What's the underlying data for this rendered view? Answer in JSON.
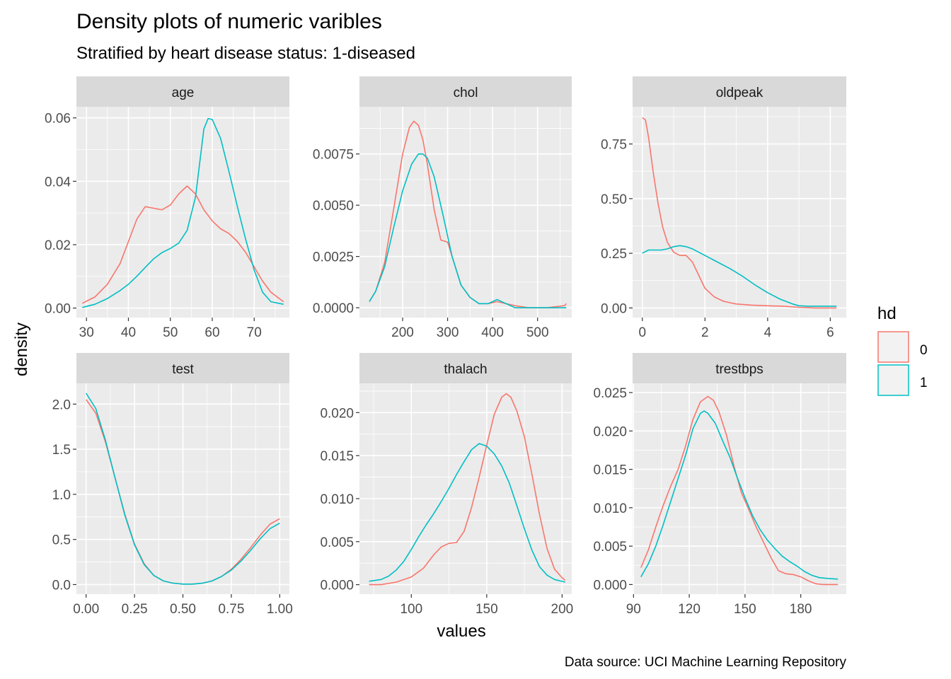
{
  "title": "Density plots of numeric varibles",
  "subtitle": "Stratified by heart disease status: 1-diseased",
  "caption": "Data source: UCI Machine Learning Repository",
  "x_title": "values",
  "y_title": "density",
  "legend": {
    "title": "hd",
    "entries": [
      "0",
      "1"
    ]
  },
  "colors": {
    "0": "#F8766D",
    "1": "#00BFC4",
    "panel_bg": "#EBEBEB",
    "strip_bg": "#D9D9D9",
    "grid": "#FFFFFF"
  },
  "chart_data": [
    {
      "type": "line",
      "panel": "age",
      "xlim": [
        27.6,
        78.4
      ],
      "ylim": [
        -0.003,
        0.0635
      ],
      "xticks": [
        30,
        40,
        50,
        60,
        70
      ],
      "xtick_labels": [
        "30",
        "40",
        "50",
        "60",
        "70"
      ],
      "yticks": [
        0,
        0.02,
        0.04,
        0.06
      ],
      "ytick_labels": [
        "0.00",
        "0.02",
        "0.04",
        "0.06"
      ],
      "series": [
        {
          "name": "0",
          "x": [
            29,
            32,
            35,
            38,
            40,
            42,
            44,
            46,
            48,
            50,
            52,
            54,
            56,
            58,
            60,
            62,
            64,
            66,
            68,
            70,
            72,
            74,
            77
          ],
          "y": [
            0.0015,
            0.0035,
            0.0075,
            0.014,
            0.021,
            0.028,
            0.032,
            0.0315,
            0.031,
            0.0325,
            0.036,
            0.0385,
            0.036,
            0.031,
            0.0275,
            0.025,
            0.0235,
            0.021,
            0.0175,
            0.013,
            0.0085,
            0.005,
            0.002
          ]
        },
        {
          "name": "1",
          "x": [
            29,
            32,
            35,
            38,
            40,
            42,
            44,
            46,
            48,
            50,
            52,
            54,
            56,
            58,
            59,
            60,
            62,
            64,
            66,
            68,
            70,
            72,
            74,
            77
          ],
          "y": [
            0.0002,
            0.0012,
            0.003,
            0.0055,
            0.0075,
            0.01,
            0.0128,
            0.0155,
            0.0175,
            0.0188,
            0.0205,
            0.0245,
            0.035,
            0.0565,
            0.0598,
            0.0595,
            0.0535,
            0.043,
            0.032,
            0.0215,
            0.012,
            0.005,
            0.002,
            0.0012
          ]
        }
      ]
    },
    {
      "type": "line",
      "panel": "chol",
      "xlim": [
        104,
        576
      ],
      "ylim": [
        -0.00048,
        0.0098
      ],
      "xticks": [
        200,
        300,
        400,
        500
      ],
      "xtick_labels": [
        "200",
        "300",
        "400",
        "500"
      ],
      "yticks": [
        0,
        0.0025,
        0.005,
        0.0075
      ],
      "ytick_labels": [
        "0.0000",
        "0.0025",
        "0.0050",
        "0.0075"
      ],
      "series": [
        {
          "name": "0",
          "x": [
            126,
            140,
            160,
            180,
            200,
            215,
            225,
            235,
            245,
            255,
            270,
            285,
            300,
            310,
            330,
            350,
            370,
            390,
            410,
            430,
            450,
            480,
            520,
            560,
            564
          ],
          "y": [
            0.0003,
            0.0008,
            0.0022,
            0.0048,
            0.0075,
            0.0088,
            0.0091,
            0.0089,
            0.0082,
            0.007,
            0.0048,
            0.0033,
            0.0032,
            0.0025,
            0.0011,
            0.0005,
            0.0002,
            0.0002,
            0.0003,
            0.0002,
            0.0001,
            0.0,
            0.0,
            0.0001,
            0.0002
          ]
        },
        {
          "name": "1",
          "x": [
            126,
            140,
            160,
            180,
            200,
            220,
            235,
            245,
            255,
            270,
            290,
            310,
            330,
            350,
            370,
            390,
            410,
            430,
            450,
            480,
            520,
            564
          ],
          "y": [
            0.0003,
            0.0008,
            0.002,
            0.0039,
            0.0057,
            0.007,
            0.0075,
            0.0075,
            0.0073,
            0.0064,
            0.0045,
            0.0025,
            0.0011,
            0.0005,
            0.0002,
            0.0002,
            0.0004,
            0.0002,
            0.0,
            0.0,
            0.0,
            0.0
          ]
        }
      ]
    },
    {
      "type": "line",
      "panel": "oldpeak",
      "xlim": [
        -0.31,
        6.51
      ],
      "ylim": [
        -0.044,
        0.92
      ],
      "xticks": [
        0,
        2,
        4,
        6
      ],
      "xtick_labels": [
        "0",
        "2",
        "4",
        "6"
      ],
      "yticks": [
        0,
        0.25,
        0.5,
        0.75
      ],
      "ytick_labels": [
        "0.00",
        "0.25",
        "0.50",
        "0.75"
      ],
      "series": [
        {
          "name": "0",
          "x": [
            0,
            0.1,
            0.2,
            0.35,
            0.5,
            0.65,
            0.8,
            1.0,
            1.2,
            1.4,
            1.6,
            1.8,
            2.0,
            2.3,
            2.6,
            3.0,
            3.5,
            4.0,
            4.5,
            5.0,
            5.5,
            6.2
          ],
          "y": [
            0.87,
            0.86,
            0.78,
            0.62,
            0.48,
            0.37,
            0.3,
            0.255,
            0.24,
            0.24,
            0.21,
            0.15,
            0.09,
            0.05,
            0.03,
            0.018,
            0.013,
            0.01,
            0.008,
            0.003,
            0.0,
            0.0
          ]
        },
        {
          "name": "1",
          "x": [
            0,
            0.2,
            0.4,
            0.6,
            0.8,
            1.0,
            1.2,
            1.4,
            1.6,
            2.0,
            2.4,
            2.8,
            3.2,
            3.6,
            4.0,
            4.4,
            4.8,
            5.0,
            5.3,
            5.6,
            6.2
          ],
          "y": [
            0.25,
            0.265,
            0.265,
            0.265,
            0.27,
            0.28,
            0.285,
            0.28,
            0.27,
            0.24,
            0.21,
            0.18,
            0.145,
            0.105,
            0.07,
            0.04,
            0.018,
            0.01,
            0.008,
            0.008,
            0.008
          ]
        }
      ]
    },
    {
      "type": "line",
      "panel": "test",
      "xlim": [
        -0.05,
        1.05
      ],
      "ylim": [
        -0.106,
        2.23
      ],
      "xticks": [
        0,
        0.25,
        0.5,
        0.75,
        1.0
      ],
      "xtick_labels": [
        "0.00",
        "0.25",
        "0.50",
        "0.75",
        "1.00"
      ],
      "yticks": [
        0,
        0.5,
        1.0,
        1.5,
        2.0
      ],
      "ytick_labels": [
        "0.0",
        "0.5",
        "1.0",
        "1.5",
        "2.0"
      ],
      "series": [
        {
          "name": "0",
          "x": [
            0,
            0.05,
            0.1,
            0.15,
            0.2,
            0.25,
            0.3,
            0.35,
            0.4,
            0.45,
            0.5,
            0.55,
            0.6,
            0.65,
            0.7,
            0.75,
            0.8,
            0.85,
            0.9,
            0.95,
            1.0
          ],
          "y": [
            2.05,
            1.9,
            1.58,
            1.18,
            0.78,
            0.45,
            0.23,
            0.1,
            0.04,
            0.015,
            0.005,
            0.005,
            0.015,
            0.04,
            0.09,
            0.17,
            0.28,
            0.41,
            0.55,
            0.67,
            0.73
          ]
        },
        {
          "name": "1",
          "x": [
            0,
            0.05,
            0.1,
            0.15,
            0.2,
            0.25,
            0.3,
            0.35,
            0.4,
            0.45,
            0.5,
            0.55,
            0.6,
            0.65,
            0.7,
            0.75,
            0.8,
            0.85,
            0.9,
            0.95,
            1.0
          ],
          "y": [
            2.12,
            1.95,
            1.6,
            1.18,
            0.77,
            0.44,
            0.22,
            0.1,
            0.04,
            0.015,
            0.005,
            0.005,
            0.015,
            0.04,
            0.09,
            0.16,
            0.26,
            0.38,
            0.51,
            0.62,
            0.68
          ]
        }
      ]
    },
    {
      "type": "line",
      "panel": "thalach",
      "xlim": [
        65.6,
        206.4
      ],
      "ylim": [
        -0.0011,
        0.0234
      ],
      "xticks": [
        100,
        150,
        200
      ],
      "xtick_labels": [
        "100",
        "150",
        "200"
      ],
      "yticks": [
        0,
        0.005,
        0.01,
        0.015,
        0.02
      ],
      "ytick_labels": [
        "0.000",
        "0.005",
        "0.010",
        "0.015",
        "0.020"
      ],
      "series": [
        {
          "name": "0",
          "x": [
            72,
            80,
            90,
            100,
            108,
            115,
            120,
            125,
            130,
            135,
            140,
            145,
            150,
            155,
            160,
            163,
            166,
            170,
            175,
            180,
            185,
            190,
            195,
            200,
            202
          ],
          "y": [
            0.0,
            0.0,
            0.0003,
            0.0009,
            0.0019,
            0.0035,
            0.0044,
            0.0048,
            0.0049,
            0.0062,
            0.009,
            0.0125,
            0.0162,
            0.0198,
            0.0218,
            0.0222,
            0.0218,
            0.0202,
            0.0172,
            0.0128,
            0.0082,
            0.0042,
            0.0018,
            0.0008,
            0.0005
          ]
        },
        {
          "name": "1",
          "x": [
            72,
            80,
            85,
            90,
            95,
            100,
            105,
            110,
            115,
            120,
            125,
            130,
            135,
            140,
            145,
            150,
            155,
            160,
            165,
            170,
            175,
            180,
            185,
            190,
            195,
            202
          ],
          "y": [
            0.0004,
            0.0006,
            0.001,
            0.0017,
            0.0027,
            0.0041,
            0.0056,
            0.007,
            0.0083,
            0.0097,
            0.0112,
            0.0128,
            0.0143,
            0.0157,
            0.0164,
            0.0161,
            0.0152,
            0.0138,
            0.0118,
            0.0092,
            0.0065,
            0.004,
            0.0021,
            0.0011,
            0.0006,
            0.0003
          ]
        }
      ]
    },
    {
      "type": "line",
      "panel": "trestbps",
      "xlim": [
        89.5,
        204.5
      ],
      "ylim": [
        -0.00125,
        0.0262
      ],
      "xticks": [
        90,
        120,
        150,
        180
      ],
      "xtick_labels": [
        "90",
        "120",
        "150",
        "180"
      ],
      "yticks": [
        0,
        0.005,
        0.01,
        0.015,
        0.02,
        0.025
      ],
      "ytick_labels": [
        "0.000",
        "0.005",
        "0.010",
        "0.015",
        "0.020",
        "0.025"
      ],
      "series": [
        {
          "name": "0",
          "x": [
            94,
            98,
            102,
            106,
            110,
            114,
            118,
            122,
            126,
            130,
            133,
            136,
            140,
            144,
            148,
            152,
            156,
            160,
            164,
            168,
            172,
            176,
            180,
            184,
            188,
            192,
            196,
            200
          ],
          "y": [
            0.0022,
            0.0045,
            0.0075,
            0.0103,
            0.0128,
            0.015,
            0.018,
            0.0215,
            0.0238,
            0.0245,
            0.024,
            0.0225,
            0.0195,
            0.0155,
            0.012,
            0.0098,
            0.0075,
            0.0055,
            0.0035,
            0.0018,
            0.0014,
            0.0013,
            0.001,
            0.0005,
            0.0001,
            0.0,
            0.0,
            0.0
          ]
        },
        {
          "name": "1",
          "x": [
            94,
            98,
            102,
            106,
            110,
            114,
            118,
            122,
            126,
            128,
            130,
            134,
            138,
            142,
            146,
            150,
            154,
            158,
            162,
            166,
            170,
            174,
            178,
            182,
            186,
            190,
            194,
            200
          ],
          "y": [
            0.001,
            0.0027,
            0.005,
            0.0078,
            0.0108,
            0.0138,
            0.0168,
            0.0203,
            0.0223,
            0.0226,
            0.0223,
            0.021,
            0.0187,
            0.0165,
            0.0138,
            0.0113,
            0.009,
            0.0072,
            0.0058,
            0.0047,
            0.0037,
            0.003,
            0.0024,
            0.0017,
            0.0012,
            0.0009,
            0.0008,
            0.0007
          ]
        }
      ]
    }
  ]
}
